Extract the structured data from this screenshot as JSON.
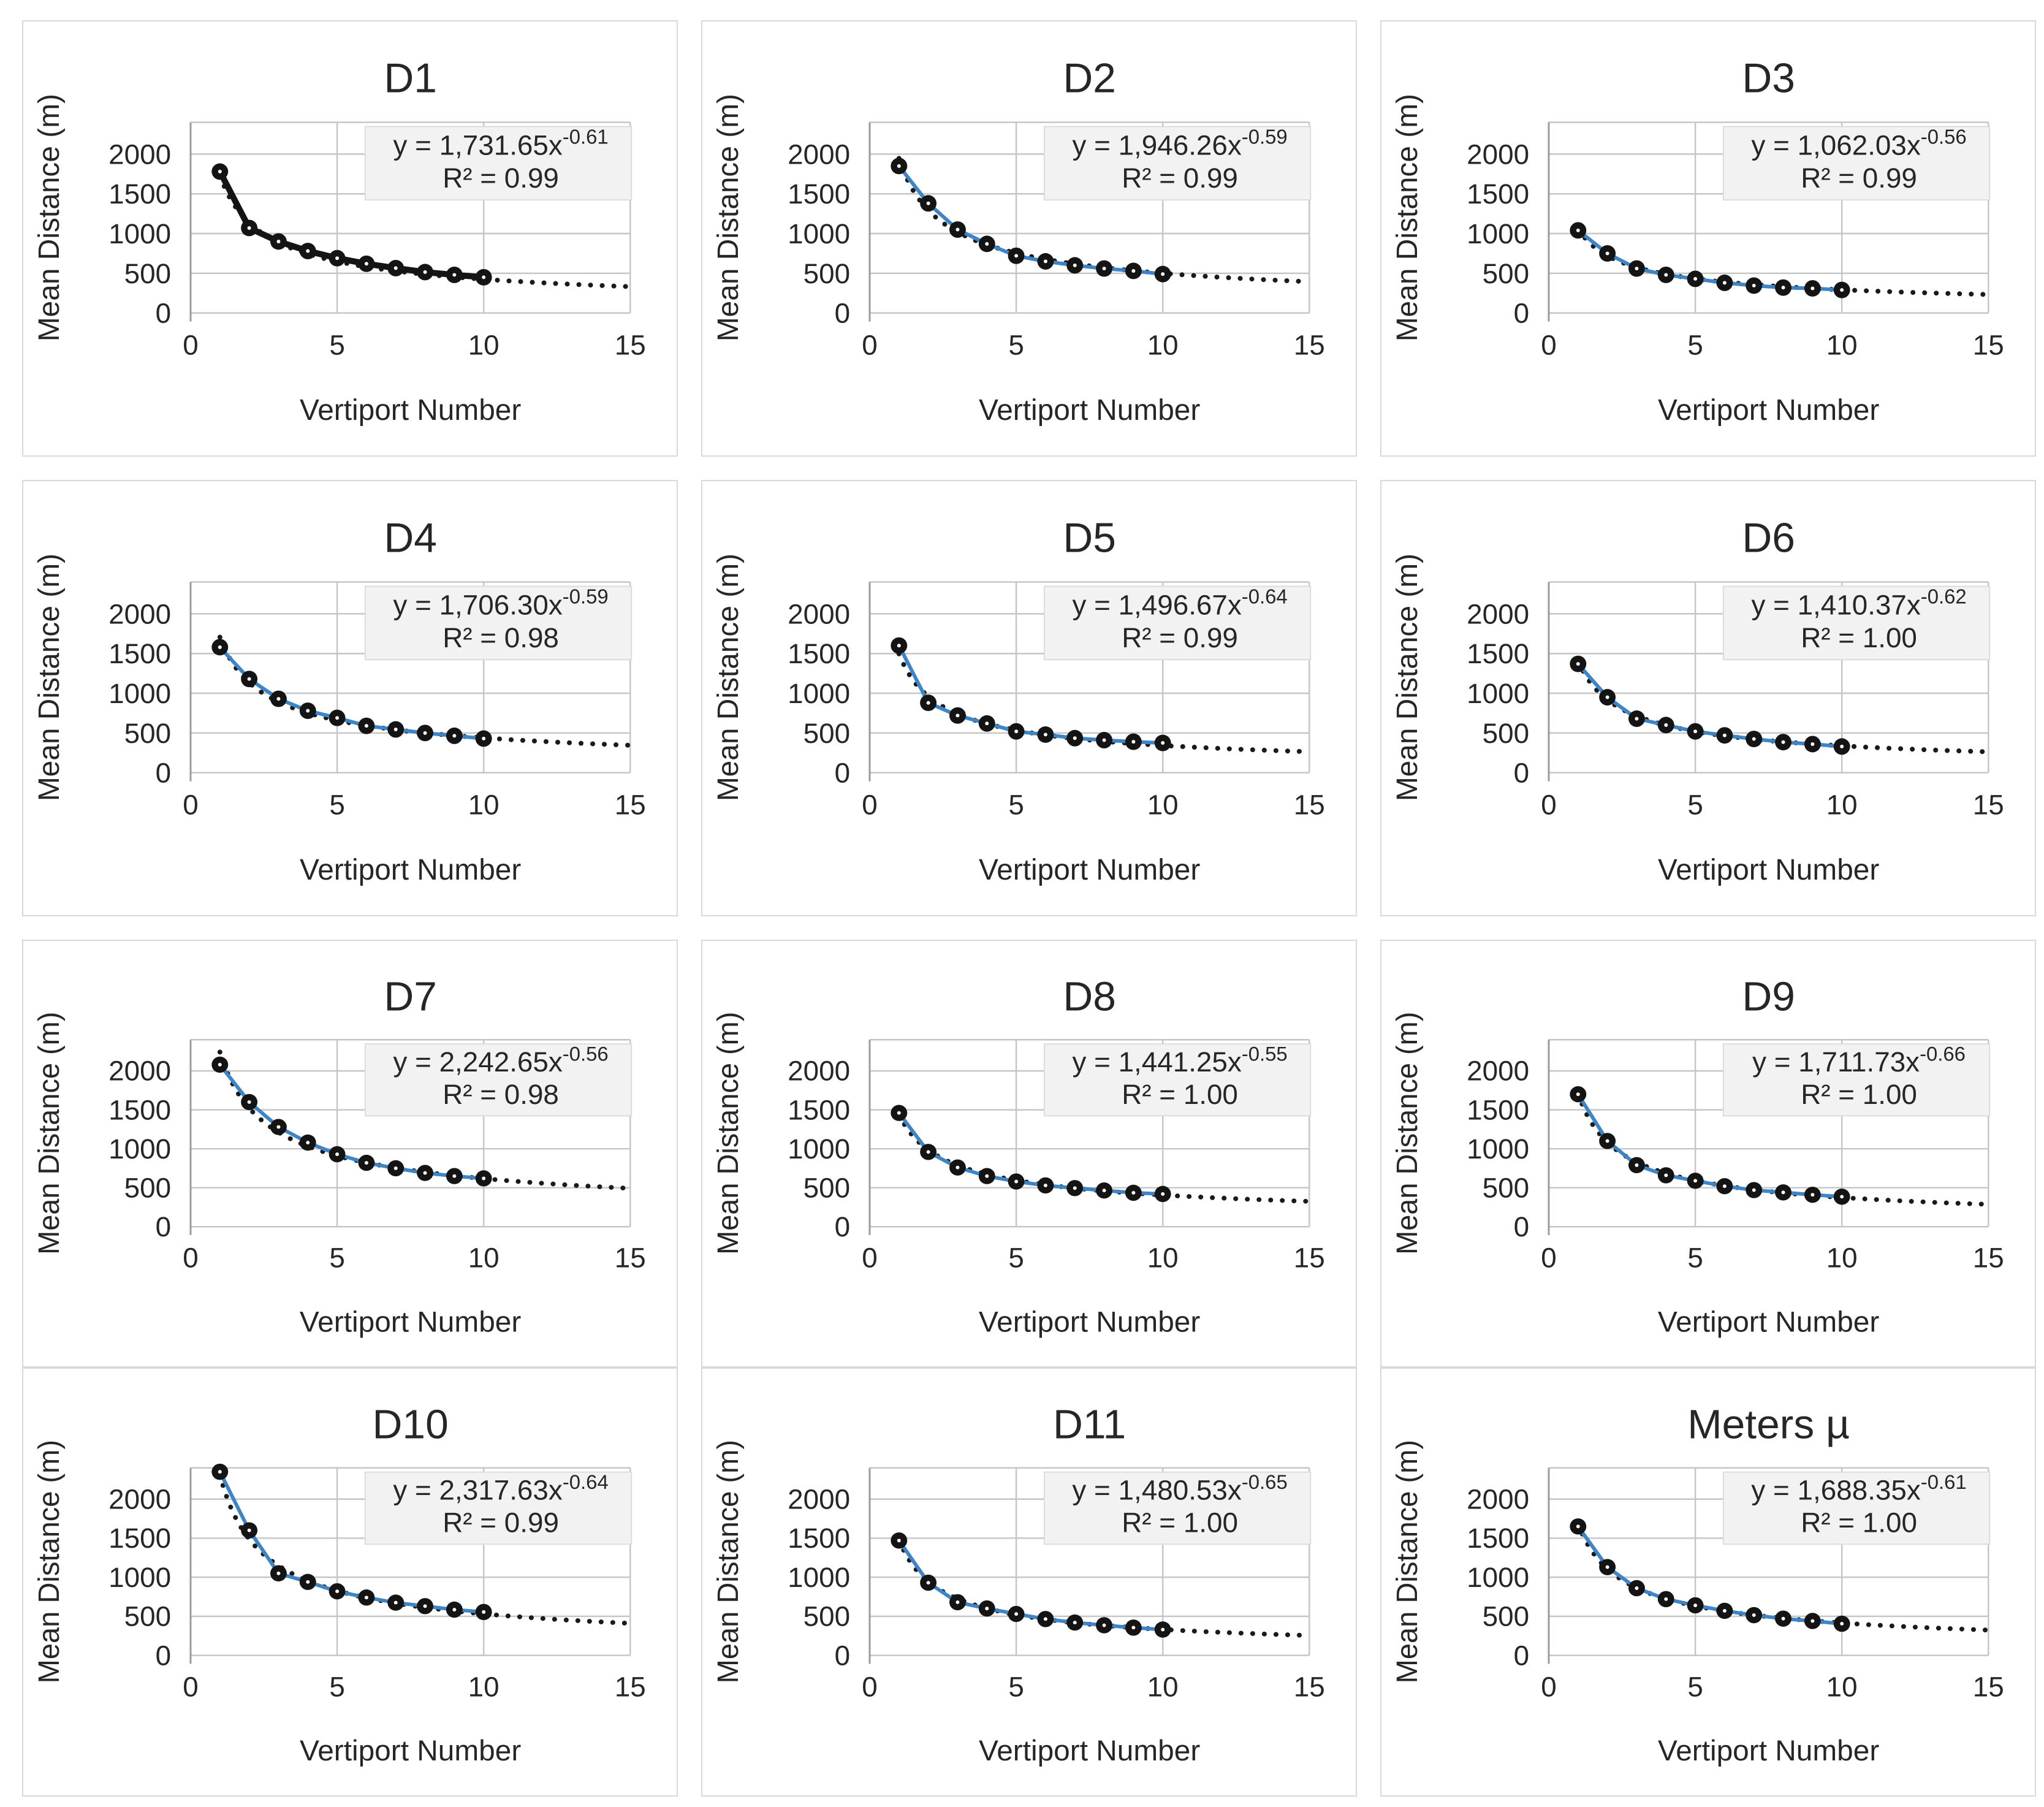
{
  "figure": {
    "xlabel": "Vertiport Number",
    "ylabel": "Mean Distance (m)",
    "x_ticks": [
      "0",
      "5",
      "10",
      "15"
    ],
    "y_ticks": [
      "0",
      "500",
      "1000",
      "1500",
      "2000"
    ],
    "x_range": [
      0,
      15
    ],
    "y_range": [
      0,
      2400
    ],
    "grid": true,
    "legend_position": "none",
    "colors": {
      "series_line_blue": "#3d85c6",
      "series_line_black": "#141414",
      "marker_fill": "#141414",
      "marker_center": "#ffffff",
      "trendline": "#1a1a1a",
      "gridline": "#c6c6c6",
      "axis_line": "#9b9b9b",
      "equation_box_bg": "#f2f2f2",
      "equation_box_border": "#dcdcdc",
      "text": "#262626"
    }
  },
  "chart_data": [
    {
      "type": "scatter",
      "title": "D1",
      "equation_coef": "y = 1,731.65x",
      "equation_exp": "-0.61",
      "r_squared": "R² = 0.99",
      "trend_a": 1731.65,
      "trend_b": -0.61,
      "line_style": "black",
      "x": [
        1,
        2,
        3,
        4,
        5,
        6,
        7,
        8,
        9,
        10
      ],
      "y": [
        1780,
        1070,
        900,
        780,
        690,
        620,
        565,
        515,
        480,
        450
      ]
    },
    {
      "type": "scatter",
      "title": "D2",
      "equation_coef": "y = 1,946.26x",
      "equation_exp": "-0.59",
      "r_squared": "R² = 0.99",
      "trend_a": 1946.26,
      "trend_b": -0.59,
      "line_style": "blue",
      "x": [
        1,
        2,
        3,
        4,
        5,
        6,
        7,
        8,
        9,
        10
      ],
      "y": [
        1850,
        1380,
        1050,
        870,
        720,
        650,
        600,
        560,
        530,
        490
      ]
    },
    {
      "type": "scatter",
      "title": "D3",
      "equation_coef": "y = 1,062.03x",
      "equation_exp": "-0.56",
      "r_squared": "R² = 0.99",
      "trend_a": 1062.03,
      "trend_b": -0.56,
      "line_style": "blue",
      "x": [
        1,
        2,
        3,
        4,
        5,
        6,
        7,
        8,
        9,
        10
      ],
      "y": [
        1040,
        750,
        560,
        480,
        430,
        380,
        345,
        320,
        310,
        290
      ]
    },
    {
      "type": "scatter",
      "title": "D4",
      "equation_coef": "y = 1,706.30x",
      "equation_exp": "-0.59",
      "r_squared": "R² = 0.98",
      "trend_a": 1706.3,
      "trend_b": -0.59,
      "line_style": "blue",
      "x": [
        1,
        2,
        3,
        4,
        5,
        6,
        7,
        8,
        9,
        10
      ],
      "y": [
        1580,
        1180,
        930,
        780,
        690,
        590,
        545,
        500,
        465,
        430
      ]
    },
    {
      "type": "scatter",
      "title": "D5",
      "equation_coef": "y = 1,496.67x",
      "equation_exp": "-0.64",
      "r_squared": "R² = 0.99",
      "trend_a": 1496.67,
      "trend_b": -0.64,
      "line_style": "blue",
      "x": [
        1,
        2,
        3,
        4,
        5,
        6,
        7,
        8,
        9,
        10
      ],
      "y": [
        1600,
        880,
        720,
        620,
        520,
        480,
        435,
        410,
        390,
        375
      ]
    },
    {
      "type": "scatter",
      "title": "D6",
      "equation_coef": "y = 1,410.37x",
      "equation_exp": "-0.62",
      "r_squared": "R² = 1.00",
      "trend_a": 1410.37,
      "trend_b": -0.62,
      "line_style": "blue",
      "x": [
        1,
        2,
        3,
        4,
        5,
        6,
        7,
        8,
        9,
        10
      ],
      "y": [
        1370,
        950,
        680,
        600,
        520,
        470,
        425,
        385,
        360,
        330
      ]
    },
    {
      "type": "scatter",
      "title": "D7",
      "equation_coef": "y = 2,242.65x",
      "equation_exp": "-0.56",
      "r_squared": "R² = 0.98",
      "trend_a": 2242.65,
      "trend_b": -0.56,
      "line_style": "blue",
      "x": [
        1,
        2,
        3,
        4,
        5,
        6,
        7,
        8,
        9,
        10
      ],
      "y": [
        2080,
        1600,
        1280,
        1080,
        930,
        820,
        750,
        690,
        650,
        620
      ]
    },
    {
      "type": "scatter",
      "title": "D8",
      "equation_coef": "y = 1,441.25x",
      "equation_exp": "-0.55",
      "r_squared": "R² = 1.00",
      "trend_a": 1441.25,
      "trend_b": -0.55,
      "line_style": "blue",
      "x": [
        1,
        2,
        3,
        4,
        5,
        6,
        7,
        8,
        9,
        10
      ],
      "y": [
        1460,
        960,
        760,
        650,
        580,
        530,
        495,
        465,
        435,
        420
      ]
    },
    {
      "type": "scatter",
      "title": "D9",
      "equation_coef": "y = 1,711.73x",
      "equation_exp": "-0.66",
      "r_squared": "R² = 1.00",
      "trend_a": 1711.73,
      "trend_b": -0.66,
      "line_style": "blue",
      "x": [
        1,
        2,
        3,
        4,
        5,
        6,
        7,
        8,
        9,
        10
      ],
      "y": [
        1700,
        1100,
        790,
        660,
        590,
        520,
        470,
        440,
        410,
        385
      ]
    },
    {
      "type": "scatter",
      "title": "D10",
      "equation_coef": "y = 2,317.63x",
      "equation_exp": "-0.64",
      "r_squared": "R² = 0.99",
      "trend_a": 2317.63,
      "trend_b": -0.64,
      "line_style": "blue",
      "x": [
        1,
        2,
        3,
        4,
        5,
        6,
        7,
        8,
        9,
        10
      ],
      "y": [
        2350,
        1600,
        1050,
        940,
        820,
        740,
        675,
        630,
        585,
        555
      ]
    },
    {
      "type": "scatter",
      "title": "D11",
      "equation_coef": "y = 1,480.53x",
      "equation_exp": "-0.65",
      "r_squared": "R² = 1.00",
      "trend_a": 1480.53,
      "trend_b": -0.65,
      "line_style": "blue",
      "x": [
        1,
        2,
        3,
        4,
        5,
        6,
        7,
        8,
        9,
        10
      ],
      "y": [
        1470,
        930,
        680,
        600,
        530,
        465,
        420,
        385,
        355,
        330
      ]
    },
    {
      "type": "scatter",
      "title": "Meters µ",
      "equation_coef": "y = 1,688.35x",
      "equation_exp": "-0.61",
      "r_squared": "R² = 1.00",
      "trend_a": 1688.35,
      "trend_b": -0.61,
      "line_style": "blue",
      "x": [
        1,
        2,
        3,
        4,
        5,
        6,
        7,
        8,
        9,
        10
      ],
      "y": [
        1650,
        1130,
        860,
        720,
        640,
        570,
        515,
        470,
        440,
        405
      ]
    }
  ]
}
